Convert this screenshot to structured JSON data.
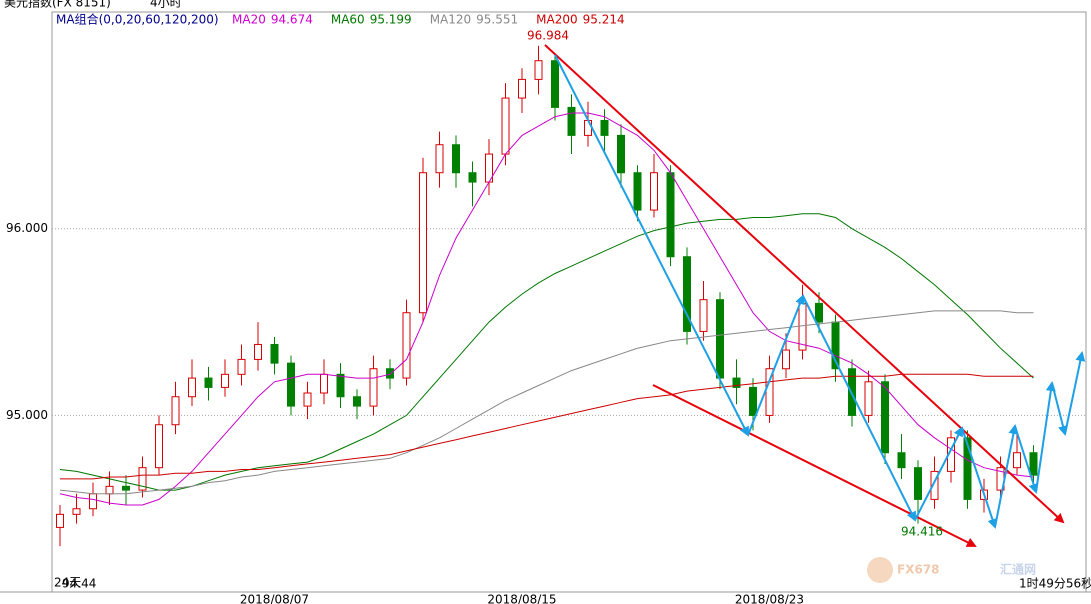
{
  "chart_data": {
    "type": "candlestick",
    "instrument": "美元指数(FX 8151)",
    "period": "4小时",
    "ma_group": "MA组合(0,0,20,60,120,200)",
    "ylim": [
      94.054,
      97.161
    ],
    "yticks": [
      {
        "value": 96,
        "label": "96.000"
      },
      {
        "value": 95,
        "label": "95.000"
      }
    ],
    "grid": true,
    "up_color": "#d80000",
    "down_color": "#008000",
    "categories": [
      null,
      null,
      null,
      null,
      null,
      null,
      null,
      null,
      null,
      null,
      null,
      null,
      null,
      "2018/08/07",
      null,
      null,
      null,
      null,
      null,
      null,
      null,
      null,
      null,
      null,
      null,
      null,
      null,
      null,
      "2018/08/15",
      null,
      null,
      null,
      null,
      null,
      null,
      null,
      null,
      null,
      null,
      null,
      null,
      null,
      null,
      "2018/08/23",
      null,
      null,
      null,
      null,
      null,
      null,
      null,
      null,
      null,
      null,
      null,
      null,
      null,
      null,
      null,
      null
    ],
    "candles": [
      [
        94.4,
        94.52,
        94.3,
        94.47
      ],
      [
        94.47,
        94.58,
        94.42,
        94.5
      ],
      [
        94.5,
        94.64,
        94.46,
        94.58
      ],
      [
        94.58,
        94.7,
        94.52,
        94.62
      ],
      [
        94.62,
        94.68,
        94.52,
        94.6
      ],
      [
        94.6,
        94.78,
        94.56,
        94.72
      ],
      [
        94.72,
        95.0,
        94.68,
        94.95
      ],
      [
        94.95,
        95.18,
        94.9,
        95.1
      ],
      [
        95.1,
        95.3,
        95.05,
        95.2
      ],
      [
        95.2,
        95.26,
        95.08,
        95.15
      ],
      [
        95.15,
        95.3,
        95.1,
        95.22
      ],
      [
        95.22,
        95.38,
        95.16,
        95.3
      ],
      [
        95.3,
        95.5,
        95.24,
        95.38
      ],
      [
        95.38,
        95.42,
        95.22,
        95.28
      ],
      [
        95.28,
        95.32,
        95.0,
        95.05
      ],
      [
        95.05,
        95.18,
        94.98,
        95.12
      ],
      [
        95.12,
        95.3,
        95.06,
        95.22
      ],
      [
        95.22,
        95.28,
        95.04,
        95.1
      ],
      [
        95.1,
        95.14,
        94.98,
        95.05
      ],
      [
        95.05,
        95.32,
        95.0,
        95.25
      ],
      [
        95.25,
        95.3,
        95.14,
        95.2
      ],
      [
        95.2,
        95.62,
        95.16,
        95.55
      ],
      [
        95.55,
        96.38,
        95.5,
        96.3
      ],
      [
        96.3,
        96.52,
        96.22,
        96.45
      ],
      [
        96.45,
        96.5,
        96.22,
        96.3
      ],
      [
        96.3,
        96.36,
        96.12,
        96.25
      ],
      [
        96.25,
        96.48,
        96.18,
        96.4
      ],
      [
        96.4,
        96.78,
        96.34,
        96.7
      ],
      [
        96.7,
        96.86,
        96.62,
        96.8
      ],
      [
        96.8,
        96.98,
        96.72,
        96.9
      ],
      [
        96.9,
        96.94,
        96.58,
        96.65
      ],
      [
        96.65,
        96.72,
        96.4,
        96.5
      ],
      [
        96.5,
        96.68,
        96.44,
        96.58
      ],
      [
        96.58,
        96.64,
        96.4,
        96.5
      ],
      [
        96.5,
        96.56,
        96.22,
        96.3
      ],
      [
        96.3,
        96.34,
        96.04,
        96.1
      ],
      [
        96.1,
        96.4,
        96.06,
        96.3
      ],
      [
        96.3,
        96.34,
        95.8,
        95.85
      ],
      [
        95.85,
        95.9,
        95.38,
        95.45
      ],
      [
        95.45,
        95.72,
        95.4,
        95.62
      ],
      [
        95.62,
        95.66,
        95.14,
        95.2
      ],
      [
        95.2,
        95.3,
        95.06,
        95.15
      ],
      [
        95.15,
        95.2,
        94.92,
        95.0
      ],
      [
        95.0,
        95.32,
        94.96,
        95.25
      ],
      [
        95.25,
        95.44,
        95.2,
        95.35
      ],
      [
        95.35,
        95.7,
        95.3,
        95.6
      ],
      [
        95.6,
        95.66,
        95.44,
        95.5
      ],
      [
        95.5,
        95.54,
        95.18,
        95.25
      ],
      [
        95.25,
        95.3,
        94.94,
        95.0
      ],
      [
        95.0,
        95.24,
        94.96,
        95.18
      ],
      [
        95.18,
        95.22,
        94.74,
        94.8
      ],
      [
        94.8,
        94.9,
        94.66,
        94.72
      ],
      [
        94.72,
        94.76,
        94.42,
        94.55
      ],
      [
        94.55,
        94.78,
        94.5,
        94.7
      ],
      [
        94.7,
        94.92,
        94.64,
        94.88
      ],
      [
        94.88,
        94.92,
        94.5,
        94.55
      ],
      [
        94.55,
        94.66,
        94.48,
        94.6
      ],
      [
        94.6,
        94.78,
        94.56,
        94.72
      ],
      [
        94.72,
        94.9,
        94.68,
        94.8
      ],
      [
        94.8,
        94.84,
        94.64,
        94.68
      ]
    ],
    "series": [
      {
        "name": "MA20",
        "last": "94.674",
        "color": "#cc00cc",
        "values": [
          94.58,
          94.56,
          94.55,
          94.53,
          94.52,
          94.52,
          94.55,
          94.62,
          94.7,
          94.8,
          94.9,
          95.0,
          95.1,
          95.18,
          95.2,
          95.22,
          95.22,
          95.21,
          95.2,
          95.2,
          95.22,
          95.3,
          95.5,
          95.75,
          95.95,
          96.1,
          96.25,
          96.4,
          96.5,
          96.55,
          96.6,
          96.62,
          96.62,
          96.6,
          96.55,
          96.5,
          96.42,
          96.3,
          96.15,
          96.0,
          95.85,
          95.7,
          95.55,
          95.45,
          95.4,
          95.38,
          95.36,
          95.32,
          95.28,
          95.22,
          95.15,
          95.05,
          94.95,
          94.88,
          94.82,
          94.76,
          94.72,
          94.7,
          94.68,
          94.67
        ]
      },
      {
        "name": "MA60",
        "last": "95.199",
        "color": "#007700",
        "values": [
          94.71,
          94.7,
          94.68,
          94.66,
          94.64,
          94.62,
          94.6,
          94.6,
          94.62,
          94.65,
          94.68,
          94.7,
          94.72,
          94.73,
          94.74,
          94.75,
          94.78,
          94.82,
          94.86,
          94.9,
          94.95,
          95.0,
          95.1,
          95.2,
          95.3,
          95.4,
          95.5,
          95.58,
          95.65,
          95.71,
          95.76,
          95.8,
          95.84,
          95.88,
          95.92,
          95.96,
          95.99,
          96.01,
          96.03,
          96.04,
          96.05,
          96.05,
          96.06,
          96.06,
          96.07,
          96.08,
          96.08,
          96.06,
          96.0,
          95.95,
          95.9,
          95.84,
          95.77,
          95.7,
          95.62,
          95.54,
          95.45,
          95.36,
          95.28,
          95.2
        ]
      },
      {
        "name": "MA120",
        "last": "95.551",
        "color": "#888888",
        "values": [
          94.6,
          94.59,
          94.58,
          94.58,
          94.58,
          94.59,
          94.6,
          94.61,
          94.62,
          94.64,
          94.65,
          94.67,
          94.68,
          94.7,
          94.71,
          94.72,
          94.73,
          94.74,
          94.75,
          94.76,
          94.77,
          94.8,
          94.84,
          94.88,
          94.93,
          94.98,
          95.03,
          95.08,
          95.12,
          95.16,
          95.2,
          95.24,
          95.27,
          95.3,
          95.33,
          95.36,
          95.38,
          95.4,
          95.41,
          95.42,
          95.43,
          95.44,
          95.45,
          95.46,
          95.47,
          95.48,
          95.49,
          95.5,
          95.51,
          95.52,
          95.53,
          95.54,
          95.55,
          95.56,
          95.56,
          95.56,
          95.56,
          95.56,
          95.55,
          95.55
        ]
      },
      {
        "name": "MA200",
        "last": "95.214",
        "color": "#cc0000",
        "values": [
          94.66,
          94.66,
          94.66,
          94.67,
          94.67,
          94.68,
          94.68,
          94.69,
          94.69,
          94.7,
          94.7,
          94.71,
          94.71,
          94.72,
          94.73,
          94.74,
          94.75,
          94.76,
          94.77,
          94.78,
          94.79,
          94.81,
          94.83,
          94.85,
          94.87,
          94.89,
          94.91,
          94.93,
          94.95,
          94.97,
          94.99,
          95.01,
          95.03,
          95.05,
          95.07,
          95.09,
          95.1,
          95.11,
          95.13,
          95.14,
          95.15,
          95.16,
          95.17,
          95.18,
          95.19,
          95.2,
          95.2,
          95.21,
          95.21,
          95.21,
          95.21,
          95.22,
          95.22,
          95.22,
          95.22,
          95.22,
          95.21,
          95.21,
          95.21,
          95.21
        ]
      }
    ],
    "high_label": "96.984",
    "low_label": "94.416",
    "corner_days": "24天",
    "corner_value": "94.44",
    "countdown": "1时49分56秒",
    "watermark": [
      "FX678",
      "汇通网"
    ]
  }
}
